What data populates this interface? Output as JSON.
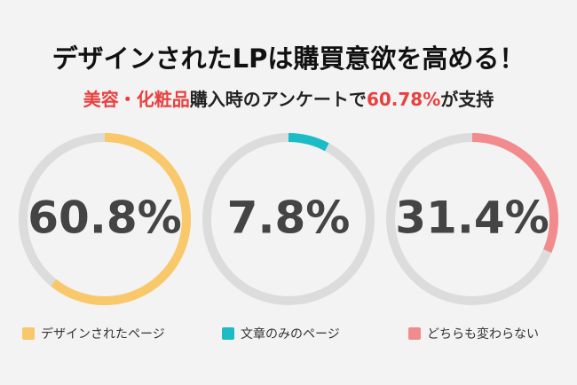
{
  "chart_data": {
    "type": "ring",
    "title": "デザインされたLPは購買意欲を高める！",
    "subtitle": [
      {
        "text": "美容・化粧品",
        "color": "#e8403f"
      },
      {
        "text": "購入時のアンケートで",
        "color": "#222222"
      },
      {
        "text": "60.78%",
        "color": "#e8403f"
      },
      {
        "text": "が支持",
        "color": "#222222"
      }
    ],
    "categories": [
      "デザインされたページ",
      "文章のみのページ",
      "どちらも変わらない"
    ],
    "values": [
      60.8,
      7.8,
      31.4
    ],
    "value_labels": [
      "60.8%",
      "7.8%",
      "31.4%"
    ],
    "colors": [
      "#f9c86a",
      "#1bbcc6",
      "#f28b8e"
    ],
    "track_color": "#dcdcdc",
    "ylim": [
      0,
      100
    ]
  }
}
